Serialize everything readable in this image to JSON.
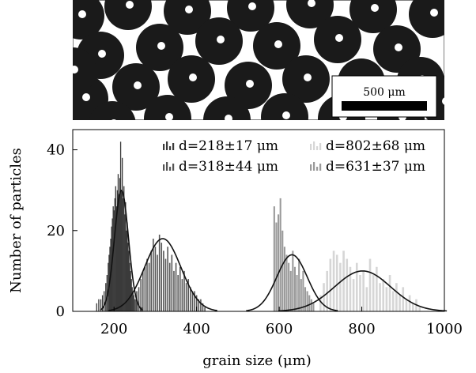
{
  "micrograph": {
    "scale_label": "500 μm"
  },
  "colors": {
    "series_218": "#3a3a3a",
    "series_318": "#555555",
    "series_631": "#9a9a9a",
    "series_802": "#d6d6d6",
    "fit_curve": "#111111",
    "particle": "#1a1a1a"
  },
  "chart_data": {
    "type": "bar",
    "xlabel": "grain size (μm)",
    "ylabel": "Number of particles",
    "xlim": [
      100,
      1000
    ],
    "ylim": [
      0,
      45
    ],
    "x_ticks": [
      200,
      400,
      600,
      800,
      1000
    ],
    "y_ticks": [
      0,
      20,
      40
    ],
    "grid": false,
    "legend_position": "top-right",
    "series": [
      {
        "name": "d=218±17 μm",
        "mean": 218,
        "std": 17,
        "peak": 30,
        "bin_width": 2.5,
        "x": [
          158,
          163,
          168,
          172,
          176,
          180,
          183,
          186,
          188,
          190,
          192,
          194,
          196,
          198,
          200,
          202,
          204,
          206,
          208,
          210,
          212,
          214,
          216,
          218,
          220,
          222,
          224,
          226,
          228,
          230,
          232,
          234,
          236,
          238,
          240,
          242,
          244,
          246,
          248,
          250,
          253,
          256,
          260,
          264,
          268
        ],
        "values": [
          2,
          3,
          3,
          4,
          5,
          7,
          9,
          12,
          14,
          16,
          18,
          21,
          23,
          26,
          25,
          28,
          31,
          26,
          30,
          34,
          29,
          33,
          42,
          30,
          38,
          28,
          31,
          24,
          27,
          20,
          22,
          17,
          15,
          12,
          10,
          8,
          6,
          5,
          4,
          3,
          3,
          2,
          2,
          1,
          1
        ]
      },
      {
        "name": "d=318±44 μm",
        "mean": 318,
        "std": 44,
        "peak": 18,
        "bin_width": 3,
        "x": [
          250,
          255,
          260,
          265,
          270,
          275,
          280,
          285,
          290,
          295,
          300,
          305,
          310,
          315,
          320,
          325,
          330,
          335,
          340,
          345,
          350,
          355,
          360,
          365,
          370,
          375,
          380,
          385,
          390,
          395,
          400,
          405,
          410,
          415,
          420
        ],
        "values": [
          3,
          5,
          6,
          8,
          10,
          11,
          13,
          12,
          15,
          18,
          16,
          14,
          19,
          17,
          15,
          13,
          16,
          12,
          14,
          10,
          12,
          9,
          11,
          8,
          10,
          7,
          8,
          6,
          5,
          5,
          4,
          3,
          3,
          2,
          1
        ]
      },
      {
        "name": "d=631±37 μm",
        "mean": 631,
        "std": 37,
        "peak": 14,
        "bin_width": 4,
        "x": [
          588,
          593,
          598,
          603,
          608,
          613,
          618,
          623,
          628,
          633,
          638,
          643,
          648,
          653,
          658,
          663,
          668,
          673,
          678,
          683
        ],
        "values": [
          26,
          22,
          24,
          28,
          20,
          16,
          14,
          12,
          10,
          15,
          11,
          9,
          13,
          8,
          10,
          6,
          5,
          4,
          3,
          2
        ]
      },
      {
        "name": "d=802±68 μm",
        "mean": 802,
        "std": 68,
        "peak": 10,
        "bin_width": 5,
        "x": [
          700,
          708,
          716,
          724,
          732,
          740,
          748,
          756,
          764,
          772,
          780,
          788,
          796,
          804,
          812,
          820,
          828,
          836,
          844,
          852,
          860,
          868,
          876,
          884,
          892,
          900,
          908,
          916,
          924,
          932,
          940
        ],
        "values": [
          4,
          7,
          10,
          13,
          15,
          14,
          12,
          15,
          13,
          11,
          8,
          12,
          9,
          10,
          6,
          13,
          9,
          11,
          7,
          8,
          6,
          9,
          5,
          7,
          4,
          6,
          3,
          4,
          2,
          3,
          1
        ]
      }
    ]
  }
}
